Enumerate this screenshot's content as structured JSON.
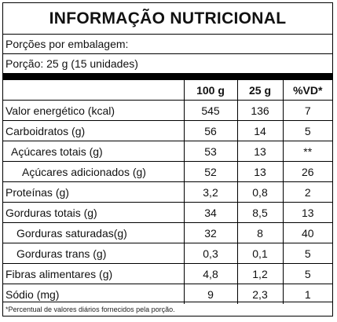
{
  "title": "INFORMAÇÃO NUTRICIONAL",
  "servings_per_package": "Porções por embalagem:",
  "serving_size": "Porção: 25 g (15 unidades)",
  "columns": {
    "per100": "100 g",
    "per25": "25 g",
    "vd": "%VD*"
  },
  "rows": [
    {
      "name": "Valor energético (kcal)",
      "per100": "545",
      "per25": "136",
      "vd": "7"
    },
    {
      "name": "Carboidratos (g)",
      "per100": "56",
      "per25": "14",
      "vd": "5"
    },
    {
      "name": "Açúcares totais (g)",
      "per100": "53",
      "per25": "13",
      "vd": "**"
    },
    {
      "name": "Açúcares adicionados (g)",
      "per100": "52",
      "per25": "13",
      "vd": "26"
    },
    {
      "name": "Proteínas (g)",
      "per100": "3,2",
      "per25": "0,8",
      "vd": "2"
    },
    {
      "name": "Gorduras totais (g)",
      "per100": "34",
      "per25": "8,5",
      "vd": "13"
    },
    {
      "name": "Gorduras saturadas(g)",
      "per100": "32",
      "per25": "8",
      "vd": "40"
    },
    {
      "name": "Gorduras trans (g)",
      "per100": "0,3",
      "per25": "0,1",
      "vd": "5"
    },
    {
      "name": "Fibras alimentares (g)",
      "per100": "4,8",
      "per25": "1,2",
      "vd": "5"
    },
    {
      "name": "Sódio (mg)",
      "per100": "9",
      "per25": "2,3",
      "vd": "1"
    }
  ],
  "footnote": "*Percentual de valores diários fornecidos pela porção."
}
